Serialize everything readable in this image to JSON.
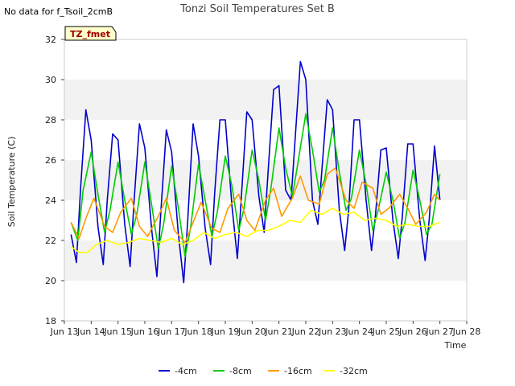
{
  "no_data_note": "No data for f_Tsoil_2cmB",
  "badge": "TZ_fmet",
  "chart_data": {
    "type": "line",
    "title": "Tonzi Soil Temperatures Set B",
    "xlabel": "Time",
    "ylabel": "Soil Temperature (C)",
    "xlim": [
      13,
      28
    ],
    "ylim": [
      18,
      32
    ],
    "x_ticks": [
      13,
      14,
      15,
      16,
      17,
      18,
      19,
      20,
      21,
      22,
      23,
      24,
      25,
      26,
      27,
      28
    ],
    "x_tick_labels": [
      "Jun 13",
      "Jun 14",
      "Jun 15",
      "Jun 16",
      "Jun 17",
      "Jun 18",
      "Jun 19",
      "Jun 20",
      "Jun 21",
      "Jun 22",
      "Jun 23",
      "Jun 24",
      "Jun 25",
      "Jun 26",
      "Jun 27",
      "Jun 28"
    ],
    "y_ticks": [
      18,
      20,
      22,
      24,
      26,
      28,
      30,
      32
    ],
    "y_tick_labels": [
      "18",
      "20",
      "22",
      "24",
      "26",
      "28",
      "30",
      "32"
    ],
    "grid": "horizontal bands",
    "legend_position": "bottom",
    "series": [
      {
        "name": "-4cm",
        "color": "#0000cc",
        "x": [
          13.25,
          13.45,
          13.6,
          13.8,
          14.0,
          14.25,
          14.45,
          14.6,
          14.8,
          15.0,
          15.25,
          15.45,
          15.6,
          15.8,
          16.0,
          16.25,
          16.45,
          16.6,
          16.8,
          17.0,
          17.25,
          17.45,
          17.6,
          17.8,
          18.0,
          18.25,
          18.45,
          18.6,
          18.8,
          19.0,
          19.25,
          19.45,
          19.6,
          19.8,
          20.0,
          20.25,
          20.45,
          20.6,
          20.8,
          21.0,
          21.25,
          21.45,
          21.6,
          21.8,
          22.0,
          22.25,
          22.45,
          22.6,
          22.8,
          23.0,
          23.25,
          23.45,
          23.6,
          23.8,
          24.0,
          24.25,
          24.45,
          24.6,
          24.8,
          25.0,
          25.25,
          25.45,
          25.6,
          25.8,
          26.0,
          26.25,
          26.45,
          26.6,
          26.8,
          27.0
        ],
        "y": [
          22.3,
          20.9,
          24.5,
          28.5,
          27.0,
          22.7,
          20.8,
          24.0,
          27.3,
          27.0,
          22.8,
          20.7,
          24.0,
          27.8,
          26.6,
          22.6,
          20.2,
          23.5,
          27.5,
          26.4,
          22.3,
          19.9,
          23.0,
          27.8,
          26.2,
          22.6,
          20.8,
          24.3,
          28.0,
          28.0,
          23.7,
          21.1,
          24.2,
          28.4,
          28.0,
          24.2,
          22.4,
          25.5,
          29.5,
          29.7,
          24.5,
          24.0,
          27.0,
          30.9,
          30.0,
          24.0,
          22.8,
          25.5,
          29.0,
          28.5,
          23.5,
          21.5,
          23.5,
          28.0,
          28.0,
          24.0,
          21.5,
          23.3,
          26.5,
          26.6,
          23.0,
          21.1,
          23.2,
          26.8,
          26.8,
          23.0,
          21.0,
          23.0,
          26.7,
          24.0
        ]
      },
      {
        "name": "-8cm",
        "color": "#00cc00",
        "x": [
          13.25,
          13.5,
          13.7,
          14.0,
          14.25,
          14.5,
          14.7,
          15.0,
          15.25,
          15.5,
          15.7,
          16.0,
          16.25,
          16.5,
          16.7,
          17.0,
          17.25,
          17.5,
          17.7,
          18.0,
          18.25,
          18.5,
          18.7,
          19.0,
          19.25,
          19.5,
          19.7,
          20.0,
          20.25,
          20.5,
          20.7,
          21.0,
          21.25,
          21.5,
          21.7,
          22.0,
          22.25,
          22.5,
          22.7,
          23.0,
          23.25,
          23.5,
          23.7,
          24.0,
          24.25,
          24.5,
          24.7,
          25.0,
          25.25,
          25.5,
          25.7,
          26.0,
          26.25,
          26.5,
          26.7,
          27.0
        ],
        "y": [
          22.9,
          22.0,
          24.5,
          26.4,
          24.3,
          22.4,
          23.5,
          25.9,
          24.0,
          22.3,
          23.3,
          25.9,
          23.8,
          21.6,
          22.8,
          25.7,
          23.6,
          21.2,
          22.6,
          25.8,
          24.0,
          22.2,
          23.4,
          26.2,
          24.7,
          22.5,
          23.6,
          26.5,
          25.0,
          23.0,
          24.6,
          27.6,
          25.6,
          24.2,
          25.8,
          28.3,
          26.5,
          24.4,
          25.0,
          27.6,
          25.4,
          23.5,
          24.1,
          26.5,
          24.8,
          22.5,
          23.5,
          25.4,
          24.0,
          22.1,
          22.9,
          25.5,
          24.0,
          22.3,
          22.8,
          25.3
        ]
      },
      {
        "name": "-16cm",
        "color": "#ff9900",
        "x": [
          13.25,
          13.55,
          13.8,
          14.1,
          14.5,
          14.8,
          15.1,
          15.5,
          15.8,
          16.1,
          16.5,
          16.8,
          17.1,
          17.5,
          17.8,
          18.1,
          18.5,
          18.8,
          19.1,
          19.5,
          19.8,
          20.1,
          20.5,
          20.8,
          21.1,
          21.5,
          21.8,
          22.1,
          22.5,
          22.8,
          23.1,
          23.5,
          23.8,
          24.1,
          24.5,
          24.8,
          25.1,
          25.5,
          25.8,
          26.1,
          26.5,
          26.8,
          27.0
        ],
        "y": [
          22.9,
          22.1,
          23.1,
          24.1,
          22.7,
          22.4,
          23.4,
          24.1,
          22.7,
          22.2,
          23.2,
          24.1,
          22.5,
          21.9,
          22.9,
          23.9,
          22.6,
          22.4,
          23.6,
          24.3,
          23.0,
          22.5,
          24.0,
          24.6,
          23.2,
          24.1,
          25.2,
          24.0,
          23.8,
          25.3,
          25.6,
          24.0,
          23.6,
          24.9,
          24.6,
          23.3,
          23.6,
          24.3,
          23.6,
          22.8,
          23.4,
          24.3,
          24.0
        ]
      },
      {
        "name": "-32cm",
        "color": "#ffff00",
        "x": [
          13.25,
          13.55,
          13.85,
          14.2,
          14.6,
          15.0,
          15.4,
          15.8,
          16.2,
          16.6,
          17.0,
          17.4,
          17.8,
          18.2,
          18.6,
          19.0,
          19.4,
          19.8,
          20.2,
          20.6,
          21.0,
          21.4,
          21.8,
          22.2,
          22.6,
          23.0,
          23.4,
          23.8,
          24.2,
          24.6,
          25.0,
          25.4,
          25.8,
          26.2,
          26.6,
          27.0
        ],
        "y": [
          21.7,
          21.4,
          21.4,
          21.8,
          22.0,
          21.8,
          21.9,
          22.1,
          22.0,
          21.9,
          22.1,
          21.8,
          22.0,
          22.4,
          22.1,
          22.3,
          22.4,
          22.2,
          22.5,
          22.5,
          22.7,
          23.0,
          22.9,
          23.5,
          23.3,
          23.6,
          23.3,
          23.4,
          23.0,
          23.1,
          23.0,
          22.7,
          22.8,
          22.7,
          22.7,
          22.9
        ]
      }
    ]
  }
}
